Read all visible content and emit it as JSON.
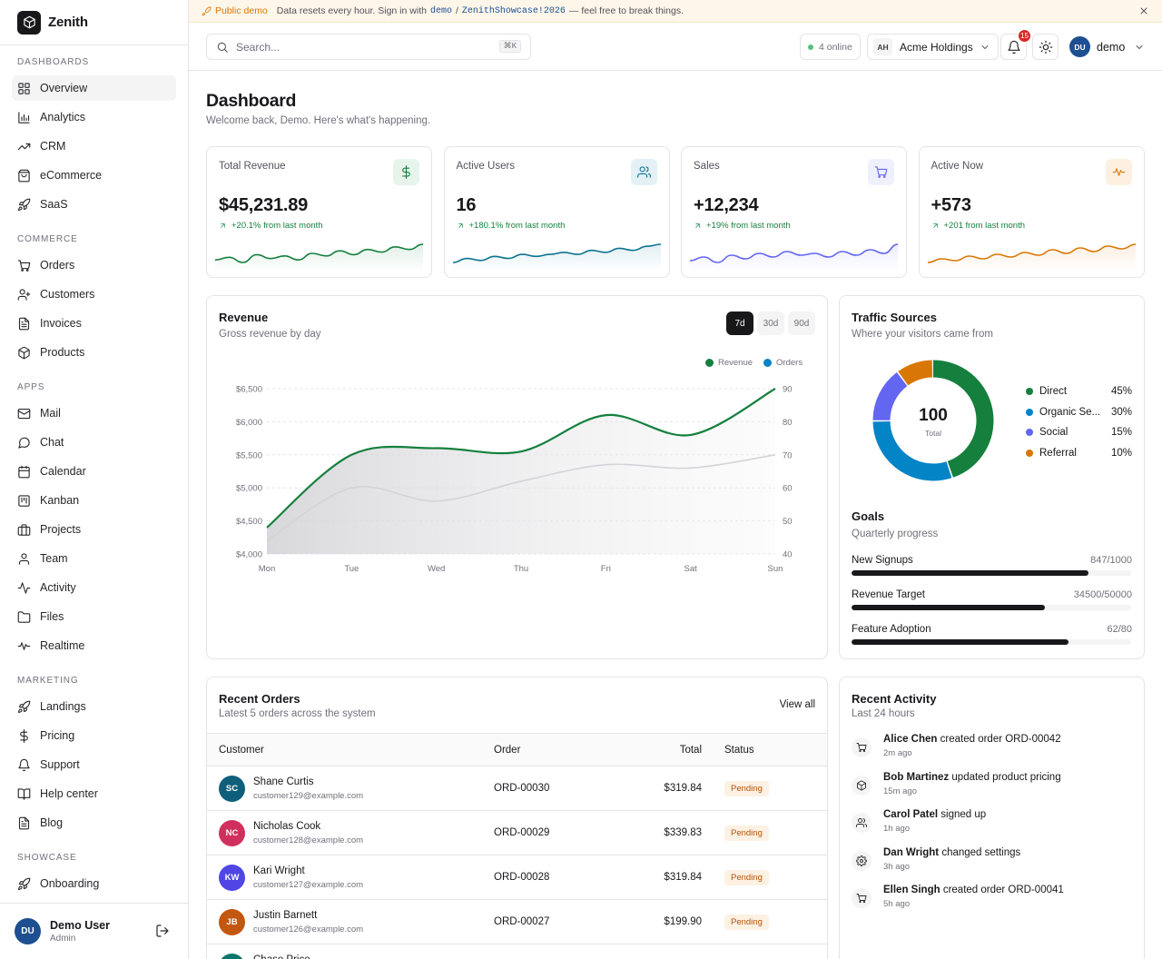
{
  "brand": {
    "name": "Zenith"
  },
  "sidebar": {
    "sections": [
      {
        "title": "DASHBOARDS",
        "items": [
          {
            "label": "Overview",
            "icon": "layout-grid-icon",
            "active": true
          },
          {
            "label": "Analytics",
            "icon": "bar-chart-icon"
          },
          {
            "label": "CRM",
            "icon": "trending-up-icon"
          },
          {
            "label": "eCommerce",
            "icon": "shopping-bag-icon"
          },
          {
            "label": "SaaS",
            "icon": "rocket-icon"
          }
        ]
      },
      {
        "title": "COMMERCE",
        "items": [
          {
            "label": "Orders",
            "icon": "cart-icon"
          },
          {
            "label": "Customers",
            "icon": "user-plus-icon"
          },
          {
            "label": "Invoices",
            "icon": "file-text-icon"
          },
          {
            "label": "Products",
            "icon": "package-icon"
          }
        ]
      },
      {
        "title": "APPS",
        "items": [
          {
            "label": "Mail",
            "icon": "mail-icon"
          },
          {
            "label": "Chat",
            "icon": "message-circle-icon"
          },
          {
            "label": "Calendar",
            "icon": "calendar-icon"
          },
          {
            "label": "Kanban",
            "icon": "kanban-icon"
          },
          {
            "label": "Projects",
            "icon": "briefcase-icon"
          },
          {
            "label": "Team",
            "icon": "user-icon"
          },
          {
            "label": "Activity",
            "icon": "activity-icon"
          },
          {
            "label": "Files",
            "icon": "folder-icon"
          },
          {
            "label": "Realtime",
            "icon": "pulse-icon"
          }
        ]
      },
      {
        "title": "MARKETING",
        "items": [
          {
            "label": "Landings",
            "icon": "rocket-icon"
          },
          {
            "label": "Pricing",
            "icon": "dollar-icon"
          },
          {
            "label": "Support",
            "icon": "bell-icon"
          },
          {
            "label": "Help center",
            "icon": "book-icon"
          },
          {
            "label": "Blog",
            "icon": "file-text-icon"
          }
        ]
      },
      {
        "title": "SHOWCASE",
        "items": [
          {
            "label": "Onboarding",
            "icon": "rocket-icon"
          }
        ]
      }
    ],
    "footer": {
      "initials": "DU",
      "name": "Demo User",
      "role": "Admin"
    }
  },
  "banner": {
    "label": "Public demo",
    "text_before": "Data resets every hour. Sign in with",
    "user": "demo",
    "separator": "/",
    "password": "ZenithShowcase!2026",
    "text_after": "— feel free to break things."
  },
  "topbar": {
    "search_placeholder": "Search...",
    "search_shortcut": "⌘K",
    "online_text": "4 online",
    "org_initials": "AH",
    "org_name": "Acme Holdings",
    "notifications": "15",
    "user_initials": "DU",
    "user_name": "demo"
  },
  "page": {
    "title": "Dashboard",
    "subtitle": "Welcome back, Demo. Here's what's happening."
  },
  "kpis": [
    {
      "label": "Total Revenue",
      "value": "$45,231.89",
      "delta": "+20.1% from last month",
      "icon": "dollar-icon",
      "color": "#15803d",
      "bg": "#e7f4ec",
      "spark": [
        40,
        42,
        38,
        44,
        41,
        43,
        40,
        45,
        43,
        47,
        44,
        48,
        46,
        50,
        48,
        52
      ]
    },
    {
      "label": "Active Users",
      "value": "16",
      "delta": "+180.1% from last month",
      "icon": "users-icon",
      "color": "#0e7490",
      "bg": "#e3f1f7",
      "spark": [
        40,
        42,
        41,
        43,
        42,
        44,
        43,
        44,
        45,
        44,
        46,
        45,
        47,
        46,
        48,
        49
      ]
    },
    {
      "label": "Sales",
      "value": "+12,234",
      "delta": "+19% from last month",
      "icon": "cart-icon",
      "color": "#6366f1",
      "bg": "#eef0fd",
      "spark": [
        44,
        46,
        43,
        47,
        45,
        48,
        46,
        49,
        47,
        48,
        46,
        49,
        47,
        50,
        48,
        53
      ]
    },
    {
      "label": "Active Now",
      "value": "+573",
      "delta": "+201 from last month",
      "icon": "pulse-icon",
      "color": "#d97706",
      "bg": "#fdf0e1",
      "spark": [
        38,
        42,
        40,
        45,
        42,
        47,
        44,
        49,
        46,
        52,
        48,
        54,
        50,
        56,
        53,
        58
      ]
    }
  ],
  "revenue": {
    "title": "Revenue",
    "subtitle": "Gross revenue by day",
    "ranges": [
      "7d",
      "30d",
      "90d"
    ],
    "active_range": "7d"
  },
  "chart_data": {
    "type": "line",
    "categories": [
      "Mon",
      "Tue",
      "Wed",
      "Thu",
      "Fri",
      "Sat",
      "Sun"
    ],
    "series": [
      {
        "name": "Revenue",
        "axis": "left",
        "color": "#15803d",
        "values": [
          4400,
          5500,
          5600,
          5550,
          6100,
          5800,
          6500
        ]
      },
      {
        "name": "Orders",
        "axis": "right",
        "color": "#0284c7",
        "values": [
          44,
          60,
          56,
          62,
          67,
          66,
          70
        ]
      }
    ],
    "y_left": {
      "ticks": [
        "$4,000",
        "$4,500",
        "$5,000",
        "$5,500",
        "$6,000",
        "$6,500"
      ],
      "range": [
        4000,
        6500
      ]
    },
    "y_right": {
      "ticks": [
        "40",
        "50",
        "60",
        "70",
        "80",
        "90"
      ],
      "range": [
        40,
        90
      ]
    },
    "legend": "top-right",
    "grid": true
  },
  "traffic": {
    "title": "Traffic Sources",
    "subtitle": "Where your visitors came from",
    "total_value": "100",
    "total_label": "Total",
    "sources": [
      {
        "name": "Direct",
        "pct": "45%",
        "value": 45,
        "color": "#15803d"
      },
      {
        "name": "Organic Se...",
        "pct": "30%",
        "value": 30,
        "color": "#0284c7"
      },
      {
        "name": "Social",
        "pct": "15%",
        "value": 15,
        "color": "#6366f1"
      },
      {
        "name": "Referral",
        "pct": "10%",
        "value": 10,
        "color": "#d97706"
      }
    ]
  },
  "goals": {
    "title": "Goals",
    "subtitle": "Quarterly progress",
    "items": [
      {
        "label": "New Signups",
        "value": "847/1000",
        "fraction": 0.847
      },
      {
        "label": "Revenue Target",
        "value": "34500/50000",
        "fraction": 0.69
      },
      {
        "label": "Feature Adoption",
        "value": "62/80",
        "fraction": 0.775
      }
    ]
  },
  "orders": {
    "title": "Recent Orders",
    "subtitle": "Latest 5 orders across the system",
    "view_all": "View all",
    "columns": [
      "Customer",
      "Order",
      "Total",
      "Status"
    ],
    "rows": [
      {
        "initials": "SC",
        "color": "#0f5f7a",
        "name": "Shane Curtis",
        "email": "customer129@example.com",
        "order": "ORD-00030",
        "total": "$319.84",
        "status": "Pending"
      },
      {
        "initials": "NC",
        "color": "#d0305d",
        "name": "Nicholas Cook",
        "email": "customer128@example.com",
        "order": "ORD-00029",
        "total": "$339.83",
        "status": "Pending"
      },
      {
        "initials": "KW",
        "color": "#4f46e5",
        "name": "Kari Wright",
        "email": "customer127@example.com",
        "order": "ORD-00028",
        "total": "$319.84",
        "status": "Pending"
      },
      {
        "initials": "JB",
        "color": "#c2580f",
        "name": "Justin Barnett",
        "email": "customer126@example.com",
        "order": "ORD-00027",
        "total": "$199.90",
        "status": "Pending"
      },
      {
        "initials": "CP",
        "color": "#0f766e",
        "name": "Chase Price",
        "email": "",
        "order": "",
        "total": "",
        "status": ""
      }
    ]
  },
  "activity": {
    "title": "Recent Activity",
    "subtitle": "Last 24 hours",
    "items": [
      {
        "actor": "Alice Chen",
        "action": "created order ORD-00042",
        "time": "2m ago",
        "icon": "cart-icon"
      },
      {
        "actor": "Bob Martinez",
        "action": "updated product pricing",
        "time": "15m ago",
        "icon": "package-icon"
      },
      {
        "actor": "Carol Patel",
        "action": "signed up",
        "time": "1h ago",
        "icon": "users-icon"
      },
      {
        "actor": "Dan Wright",
        "action": "changed settings",
        "time": "3h ago",
        "icon": "gear-icon"
      },
      {
        "actor": "Ellen Singh",
        "action": "created order ORD-00041",
        "time": "5h ago",
        "icon": "cart-icon"
      }
    ]
  }
}
